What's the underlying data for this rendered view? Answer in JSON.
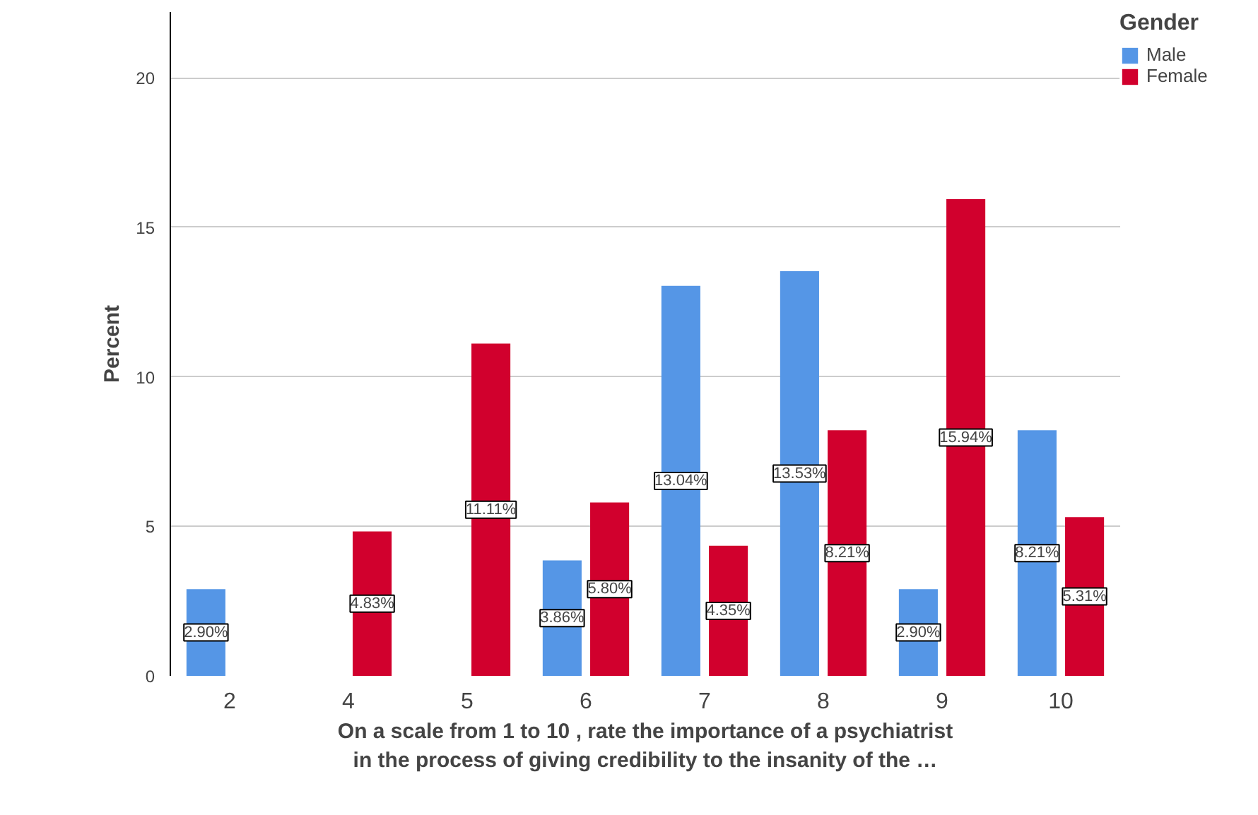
{
  "chart_data": {
    "type": "bar",
    "xlabel": "On a scale from 1 to 10 , rate the importance of a psychiatrist\nin the process of giving credibility to the insanity of the …",
    "ylabel": "Percent",
    "legend_title": "Gender",
    "categories": [
      "2",
      "4",
      "5",
      "6",
      "7",
      "8",
      "9",
      "10"
    ],
    "series": [
      {
        "name": "Male",
        "color": "#5596e6",
        "values": [
          2.9,
          null,
          null,
          3.86,
          13.04,
          13.53,
          2.9,
          8.21
        ],
        "value_labels": [
          "2.90%",
          null,
          null,
          "3.86%",
          "13.04%",
          "13.53%",
          "2.90%",
          "8.21%"
        ]
      },
      {
        "name": "Female",
        "color": "#d1002d",
        "values": [
          null,
          4.83,
          11.11,
          5.8,
          4.35,
          8.21,
          15.94,
          5.31
        ],
        "value_labels": [
          null,
          "4.83%",
          "11.11%",
          "5.80%",
          "4.35%",
          "8.21%",
          "15.94%",
          "5.31%"
        ]
      }
    ],
    "ylim": [
      0,
      22.2
    ],
    "yticks": [
      0,
      5,
      10,
      15,
      20
    ],
    "grid": "y",
    "legend": "top right"
  }
}
